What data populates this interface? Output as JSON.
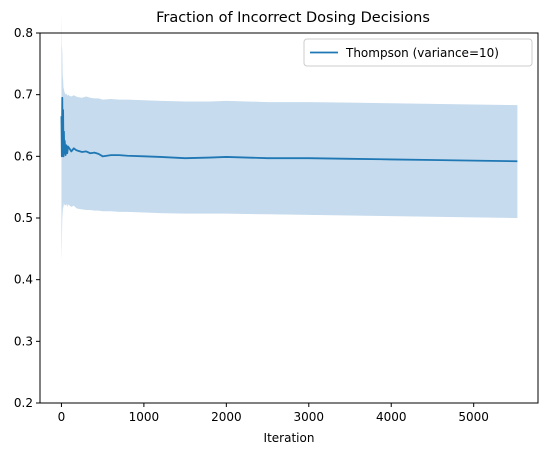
{
  "chart_data": {
    "type": "line",
    "title": "Fraction of Incorrect Dosing Decisions",
    "xlabel": "Iteration",
    "ylabel": "",
    "xlim": [
      -260,
      5780
    ],
    "ylim": [
      0.2,
      0.8
    ],
    "xticks": [
      0,
      1000,
      2000,
      3000,
      4000,
      5000
    ],
    "yticks": [
      0.2,
      0.3,
      0.4,
      0.5,
      0.6,
      0.7,
      0.8
    ],
    "xtick_labels": [
      "0",
      "1000",
      "2000",
      "3000",
      "4000",
      "5000"
    ],
    "ytick_labels": [
      "0.2",
      "0.3",
      "0.4",
      "0.5",
      "0.6",
      "0.7",
      "0.8"
    ],
    "grid": false,
    "legend_position": "top-right",
    "series": [
      {
        "name": "Thompson (variance=10)",
        "color": "#1f77b4",
        "band_color": "#c6dbed",
        "x": [
          0,
          5,
          10,
          15,
          20,
          25,
          30,
          35,
          40,
          50,
          60,
          70,
          80,
          100,
          120,
          150,
          180,
          200,
          250,
          300,
          350,
          400,
          450,
          500,
          600,
          700,
          800,
          1000,
          1200,
          1500,
          1800,
          2000,
          2500,
          3000,
          3500,
          4000,
          4500,
          5000,
          5530
        ],
        "mean": [
          0.665,
          0.6,
          0.695,
          0.615,
          0.675,
          0.6,
          0.64,
          0.605,
          0.625,
          0.602,
          0.618,
          0.605,
          0.616,
          0.612,
          0.608,
          0.613,
          0.61,
          0.609,
          0.607,
          0.608,
          0.605,
          0.606,
          0.604,
          0.6,
          0.602,
          0.602,
          0.601,
          0.6,
          0.599,
          0.597,
          0.598,
          0.599,
          0.597,
          0.597,
          0.596,
          0.595,
          0.594,
          0.593,
          0.592
        ],
        "lower": [
          0.43,
          0.46,
          0.5,
          0.51,
          0.52,
          0.515,
          0.525,
          0.52,
          0.522,
          0.52,
          0.523,
          0.518,
          0.522,
          0.52,
          0.518,
          0.52,
          0.516,
          0.515,
          0.514,
          0.513,
          0.513,
          0.512,
          0.512,
          0.511,
          0.511,
          0.51,
          0.51,
          0.509,
          0.508,
          0.507,
          0.507,
          0.507,
          0.506,
          0.505,
          0.504,
          0.503,
          0.502,
          0.501,
          0.5
        ],
        "upper": [
          0.83,
          0.78,
          0.77,
          0.73,
          0.725,
          0.71,
          0.71,
          0.705,
          0.703,
          0.7,
          0.702,
          0.698,
          0.7,
          0.698,
          0.697,
          0.699,
          0.697,
          0.696,
          0.695,
          0.697,
          0.695,
          0.694,
          0.694,
          0.692,
          0.693,
          0.692,
          0.692,
          0.691,
          0.69,
          0.689,
          0.689,
          0.69,
          0.688,
          0.688,
          0.687,
          0.686,
          0.685,
          0.684,
          0.683
        ]
      }
    ]
  }
}
